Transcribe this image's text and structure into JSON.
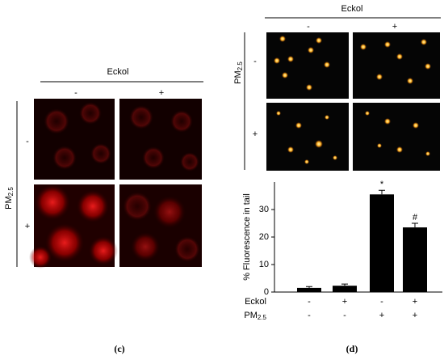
{
  "panel_c": {
    "header": "Eckol",
    "columns": [
      "-",
      "+"
    ],
    "row_label": {
      "main": "PM",
      "sub": "2.5"
    },
    "rows": [
      "-",
      "+"
    ],
    "caption": "(c)"
  },
  "panel_d": {
    "header": "Eckol",
    "columns": [
      "-",
      "+"
    ],
    "row_label": {
      "main": "PM",
      "sub": "2.5"
    },
    "rows": [
      "-",
      "+"
    ],
    "caption": "(d)"
  },
  "chart_data": {
    "type": "bar",
    "y_label": "% Fluorescence in tail",
    "color": "#000000",
    "categories": [
      null,
      null,
      null,
      null
    ],
    "values": [
      1.5,
      2.3,
      35.5,
      23.5
    ],
    "errors": [
      0.5,
      0.6,
      1.5,
      1.5
    ],
    "markers": [
      null,
      null,
      "*",
      "#"
    ],
    "ylim": [
      0,
      40
    ],
    "yticks": [
      0,
      10,
      20,
      30
    ],
    "factor_rows": [
      {
        "label": {
          "main": "Eckol"
        },
        "levels": [
          "-",
          "+",
          "-",
          "+"
        ]
      },
      {
        "label": {
          "main": "PM",
          "sub": "2.5"
        },
        "levels": [
          "-",
          "-",
          "+",
          "+"
        ]
      }
    ]
  }
}
